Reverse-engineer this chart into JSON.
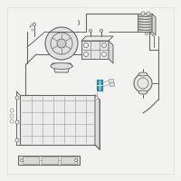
{
  "bg": "#f2f2f0",
  "lc": "#999999",
  "dc": "#666666",
  "hc": "#4499aa",
  "wc": "#ffffff"
}
